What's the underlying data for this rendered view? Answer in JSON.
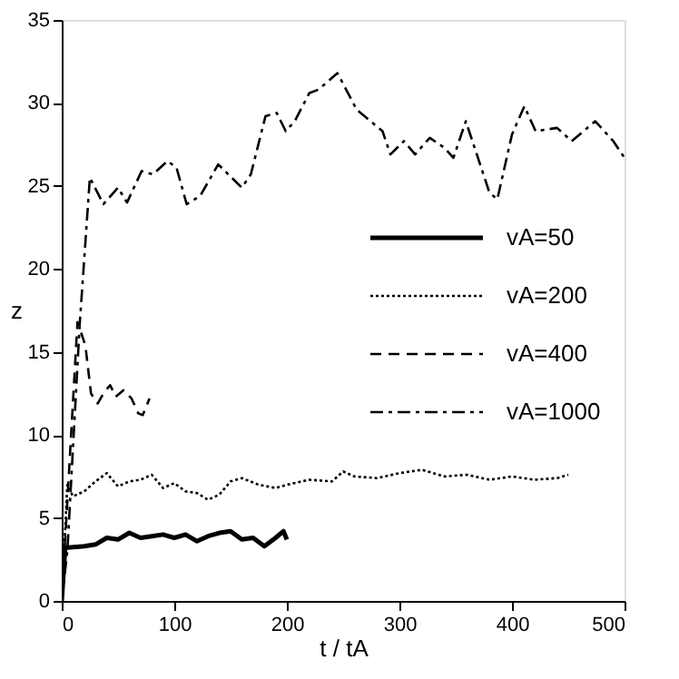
{
  "chart_data": {
    "type": "line",
    "xlabel": "t / tA",
    "ylabel": "z",
    "xlim": [
      0,
      500
    ],
    "xticks": [
      0,
      100,
      200,
      300,
      400,
      500
    ],
    "ylim": [
      0,
      35
    ],
    "yticks": [
      0,
      5,
      10,
      15,
      20,
      25,
      30,
      35
    ],
    "grid": false,
    "legend": "right",
    "marker": "none",
    "series": [
      {
        "name": "vA=50",
        "color": "#000000",
        "line_style": "solid",
        "x": [
          0,
          3,
          20,
          30,
          40,
          50,
          60,
          70,
          80,
          90,
          100,
          110,
          120,
          130,
          140,
          150,
          160,
          170,
          180,
          190,
          197,
          200
        ],
        "values": [
          0,
          3.2,
          3.3,
          3.4,
          3.8,
          3.7,
          4.1,
          3.8,
          3.9,
          4.0,
          3.8,
          4.0,
          3.6,
          3.9,
          4.1,
          4.2,
          3.7,
          3.8,
          3.3,
          3.8,
          4.2,
          3.7
        ]
      },
      {
        "name": "vA=200",
        "color": "#000000",
        "line_style": "dotted",
        "x": [
          0,
          5,
          10,
          20,
          30,
          40,
          50,
          60,
          70,
          80,
          90,
          100,
          110,
          120,
          130,
          140,
          150,
          160,
          175,
          190,
          200,
          220,
          240,
          250,
          260,
          280,
          300,
          320,
          340,
          360,
          380,
          400,
          420,
          440,
          450
        ],
        "values": [
          0,
          7,
          6.3,
          6.6,
          7.2,
          7.7,
          6.9,
          7.2,
          7.3,
          7.6,
          6.8,
          7.1,
          6.6,
          6.5,
          6.1,
          6.4,
          7.2,
          7.4,
          7.0,
          6.8,
          7.0,
          7.3,
          7.2,
          7.8,
          7.5,
          7.4,
          7.7,
          7.9,
          7.5,
          7.6,
          7.3,
          7.5,
          7.3,
          7.4,
          7.6
        ]
      },
      {
        "name": "vA=400",
        "color": "#000000",
        "line_style": "dashed",
        "x": [
          0,
          14,
          21,
          26,
          32,
          38,
          43,
          48,
          55,
          62,
          68,
          72,
          78
        ],
        "values": [
          0,
          16.8,
          15.4,
          12.5,
          11.9,
          12.6,
          13,
          12.3,
          12.7,
          12.2,
          11.3,
          11.2,
          12.2
        ]
      },
      {
        "name": "vA=1000",
        "color": "#000000",
        "line_style": "dashdot",
        "x": [
          0,
          5,
          16,
          25,
          37,
          50,
          58,
          71,
          81,
          94,
          102,
          111,
          123,
          139,
          160,
          168,
          181,
          191,
          199,
          207,
          220,
          228,
          245,
          262,
          285,
          292,
          304,
          314,
          327,
          340,
          348,
          359,
          380,
          387,
          400,
          411,
          421,
          440,
          453,
          474,
          490,
          500
        ],
        "values": [
          0,
          3,
          16.7,
          25.5,
          23.9,
          24.9,
          24,
          25.9,
          25.7,
          26.5,
          26.1,
          23.9,
          24.4,
          26.3,
          24.9,
          25.7,
          29.2,
          29.4,
          28.3,
          28.9,
          30.6,
          30.8,
          31.8,
          29.6,
          28.3,
          26.9,
          27.7,
          26.9,
          27.9,
          27.3,
          26.7,
          28.9,
          24.6,
          24.2,
          28.1,
          29.8,
          28.3,
          28.5,
          27.7,
          28.9,
          27.7,
          26.7
        ]
      }
    ]
  }
}
